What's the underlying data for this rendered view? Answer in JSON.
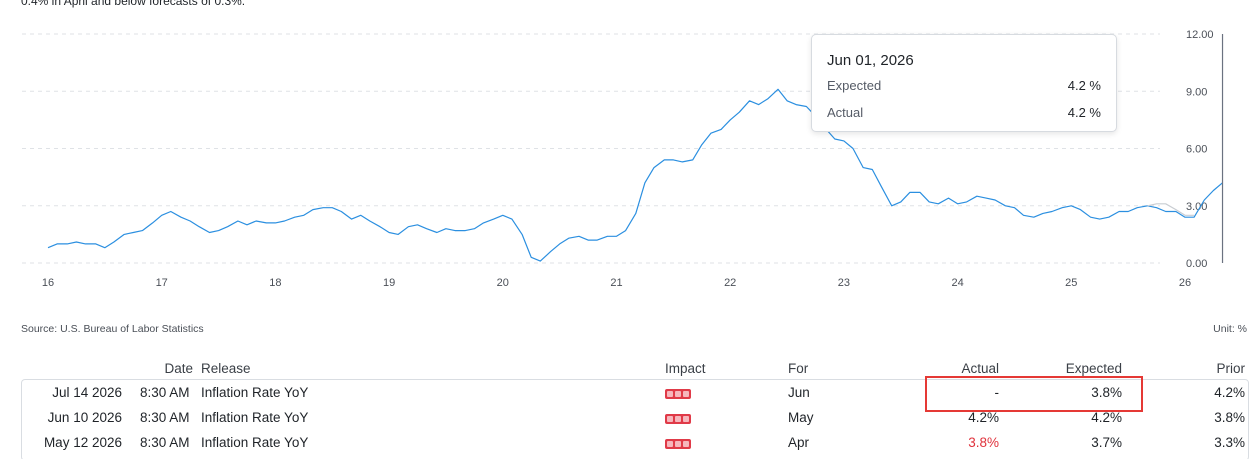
{
  "intro_text": "0.4% in April and below forecasts of 0.3%.",
  "colors": {
    "line": "#2b8fe0",
    "forecast_line": "#c9cdd2",
    "accent_red": "#e53935",
    "impact": "#e03a48"
  },
  "chart_data": {
    "type": "line",
    "title": "",
    "xlabel": "",
    "ylabel": "",
    "x_ticks": [
      "16",
      "17",
      "18",
      "19",
      "20",
      "21",
      "22",
      "23",
      "24",
      "25",
      "26"
    ],
    "y_ticks": [
      "0.00",
      "3.00",
      "6.00",
      "9.00",
      "12.00"
    ],
    "ylim": [
      0,
      12
    ],
    "xlim": [
      2016.0,
      2026.35
    ],
    "grid": true,
    "series": [
      {
        "points": [
          [
            2016.0,
            0.8
          ],
          [
            2016.08,
            1.0
          ],
          [
            2016.17,
            1.0
          ],
          [
            2016.25,
            1.1
          ],
          [
            2016.33,
            1.0
          ],
          [
            2016.42,
            1.0
          ],
          [
            2016.5,
            0.8
          ],
          [
            2016.58,
            1.1
          ],
          [
            2016.67,
            1.5
          ],
          [
            2016.75,
            1.6
          ],
          [
            2016.83,
            1.7
          ],
          [
            2016.92,
            2.1
          ],
          [
            2017.0,
            2.5
          ],
          [
            2017.08,
            2.7
          ],
          [
            2017.17,
            2.4
          ],
          [
            2017.25,
            2.2
          ],
          [
            2017.33,
            1.9
          ],
          [
            2017.42,
            1.6
          ],
          [
            2017.5,
            1.7
          ],
          [
            2017.58,
            1.9
          ],
          [
            2017.67,
            2.2
          ],
          [
            2017.75,
            2.0
          ],
          [
            2017.83,
            2.2
          ],
          [
            2017.92,
            2.1
          ],
          [
            2018.0,
            2.1
          ],
          [
            2018.08,
            2.2
          ],
          [
            2018.17,
            2.4
          ],
          [
            2018.25,
            2.5
          ],
          [
            2018.33,
            2.8
          ],
          [
            2018.42,
            2.9
          ],
          [
            2018.5,
            2.9
          ],
          [
            2018.58,
            2.7
          ],
          [
            2018.67,
            2.3
          ],
          [
            2018.75,
            2.5
          ],
          [
            2018.83,
            2.2
          ],
          [
            2018.92,
            1.9
          ],
          [
            2019.0,
            1.6
          ],
          [
            2019.08,
            1.5
          ],
          [
            2019.17,
            1.9
          ],
          [
            2019.25,
            2.0
          ],
          [
            2019.33,
            1.8
          ],
          [
            2019.42,
            1.6
          ],
          [
            2019.5,
            1.8
          ],
          [
            2019.58,
            1.7
          ],
          [
            2019.67,
            1.7
          ],
          [
            2019.75,
            1.8
          ],
          [
            2019.83,
            2.1
          ],
          [
            2019.92,
            2.3
          ],
          [
            2020.0,
            2.5
          ],
          [
            2020.08,
            2.3
          ],
          [
            2020.17,
            1.5
          ],
          [
            2020.25,
            0.3
          ],
          [
            2020.33,
            0.1
          ],
          [
            2020.42,
            0.6
          ],
          [
            2020.5,
            1.0
          ],
          [
            2020.58,
            1.3
          ],
          [
            2020.67,
            1.4
          ],
          [
            2020.75,
            1.2
          ],
          [
            2020.83,
            1.2
          ],
          [
            2020.92,
            1.4
          ],
          [
            2021.0,
            1.4
          ],
          [
            2021.08,
            1.7
          ],
          [
            2021.17,
            2.6
          ],
          [
            2021.25,
            4.2
          ],
          [
            2021.33,
            5.0
          ],
          [
            2021.42,
            5.4
          ],
          [
            2021.5,
            5.4
          ],
          [
            2021.58,
            5.3
          ],
          [
            2021.67,
            5.4
          ],
          [
            2021.75,
            6.2
          ],
          [
            2021.83,
            6.8
          ],
          [
            2021.92,
            7.0
          ],
          [
            2022.0,
            7.5
          ],
          [
            2022.08,
            7.9
          ],
          [
            2022.17,
            8.5
          ],
          [
            2022.25,
            8.3
          ],
          [
            2022.33,
            8.6
          ],
          [
            2022.42,
            9.1
          ],
          [
            2022.5,
            8.5
          ],
          [
            2022.58,
            8.3
          ],
          [
            2022.67,
            8.2
          ],
          [
            2022.75,
            7.7
          ],
          [
            2022.83,
            7.1
          ],
          [
            2022.92,
            6.5
          ],
          [
            2023.0,
            6.4
          ],
          [
            2023.08,
            6.0
          ],
          [
            2023.17,
            5.0
          ],
          [
            2023.25,
            4.9
          ],
          [
            2023.33,
            4.0
          ],
          [
            2023.42,
            3.0
          ],
          [
            2023.5,
            3.2
          ],
          [
            2023.58,
            3.7
          ],
          [
            2023.67,
            3.7
          ],
          [
            2023.75,
            3.2
          ],
          [
            2023.83,
            3.1
          ],
          [
            2023.92,
            3.4
          ],
          [
            2024.0,
            3.1
          ],
          [
            2024.08,
            3.2
          ],
          [
            2024.17,
            3.5
          ],
          [
            2024.25,
            3.4
          ],
          [
            2024.33,
            3.3
          ],
          [
            2024.42,
            3.0
          ],
          [
            2024.5,
            2.9
          ],
          [
            2024.58,
            2.5
          ],
          [
            2024.67,
            2.4
          ],
          [
            2024.75,
            2.6
          ],
          [
            2024.83,
            2.7
          ],
          [
            2024.92,
            2.9
          ],
          [
            2025.0,
            3.0
          ],
          [
            2025.08,
            2.8
          ],
          [
            2025.17,
            2.4
          ],
          [
            2025.25,
            2.3
          ],
          [
            2025.33,
            2.4
          ],
          [
            2025.42,
            2.7
          ],
          [
            2025.5,
            2.7
          ],
          [
            2025.58,
            2.9
          ],
          [
            2025.67,
            3.0
          ],
          [
            2025.75,
            2.9
          ],
          [
            2025.83,
            2.7
          ],
          [
            2025.92,
            2.7
          ],
          [
            2026.0,
            2.4
          ],
          [
            2026.08,
            2.4
          ],
          [
            2026.17,
            3.3
          ],
          [
            2026.25,
            3.8
          ],
          [
            2026.33,
            4.2
          ]
        ]
      },
      {
        "style": "forecast",
        "points": [
          [
            2025.67,
            3.0
          ],
          [
            2025.75,
            3.1
          ],
          [
            2025.83,
            3.1
          ],
          [
            2025.92,
            2.8
          ],
          [
            2026.0,
            2.5
          ],
          [
            2026.08,
            2.5
          ]
        ]
      }
    ],
    "cursor_x": 2026.33,
    "tooltip": {
      "date": "Jun 01, 2026",
      "expected_label": "Expected",
      "expected_value": "4.2 %",
      "actual_label": "Actual",
      "actual_value": "4.2 %"
    }
  },
  "source_label": "Source: U.S. Bureau of Labor Statistics",
  "unit_label": "Unit: %",
  "table": {
    "headers": {
      "date": "Date",
      "release": "Release",
      "impact": "Impact",
      "for": "For",
      "actual": "Actual",
      "expected": "Expected",
      "prior": "Prior"
    },
    "rows": [
      {
        "date": "Jul 14 2026",
        "time": "8:30 AM",
        "release": "Inflation Rate YoY",
        "for": "Jun",
        "actual": "-",
        "expected": "3.8%",
        "prior": "4.2%",
        "actual_red": false
      },
      {
        "date": "Jun 10 2026",
        "time": "8:30 AM",
        "release": "Inflation Rate YoY",
        "for": "May",
        "actual": "4.2%",
        "expected": "4.2%",
        "prior": "3.8%",
        "actual_red": false
      },
      {
        "date": "May 12 2026",
        "time": "8:30 AM",
        "release": "Inflation Rate YoY",
        "for": "Apr",
        "actual": "3.8%",
        "expected": "3.7%",
        "prior": "3.3%",
        "actual_red": true
      }
    ]
  }
}
